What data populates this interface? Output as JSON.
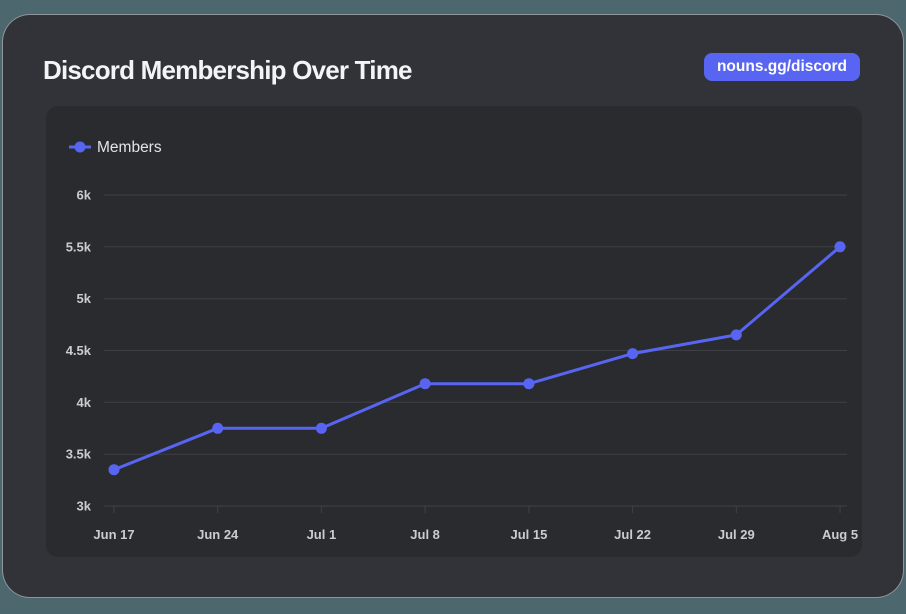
{
  "header": {
    "title": "Discord Membership Over Time",
    "badge": {
      "label": "nouns.gg/discord",
      "background": "#5865f2",
      "text_color": "#ffffff"
    }
  },
  "chart_data": {
    "type": "line",
    "title": "Discord Membership Over Time",
    "categories": [
      "Jun 17",
      "Jun 24",
      "Jul 1",
      "Jul 8",
      "Jul 15",
      "Jul 22",
      "Jul 29",
      "Aug 5"
    ],
    "series": [
      {
        "name": "Members",
        "color": "#5865f2",
        "values": [
          3350,
          3750,
          3750,
          4180,
          4180,
          4470,
          4650,
          5500
        ]
      }
    ],
    "xlabel": "",
    "ylabel": "",
    "ylim": [
      3000,
      6000
    ],
    "y_tick_values": [
      3000,
      3500,
      4000,
      4500,
      5000,
      5500,
      6000
    ],
    "y_tick_labels": [
      "3k",
      "3.5k",
      "4k",
      "4.5k",
      "5k",
      "5.5k",
      "6k"
    ],
    "grid": "horizontal",
    "legend": {
      "label": "Members",
      "position": "top-left"
    },
    "colors": {
      "line": "#5865f2",
      "grid": "#3e4046",
      "tick_label": "#c9cdd2",
      "legend_text": "#e2e4e7",
      "panel_bg": "#292b2f",
      "card_bg": "#313338",
      "page_bg": "#4c676d"
    }
  }
}
